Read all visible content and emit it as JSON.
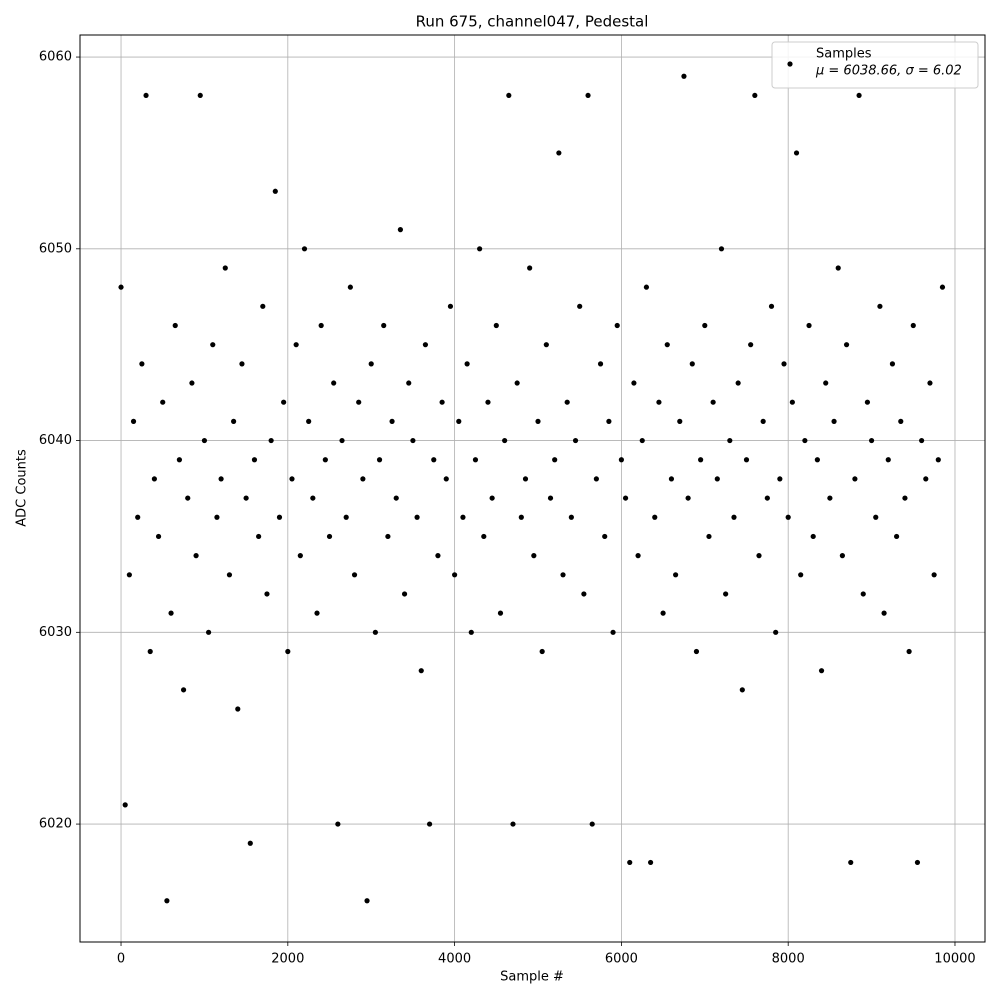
{
  "chart_data": {
    "type": "scatter",
    "title": "Run 675, channel047, Pedestal",
    "x_label": "Sample #",
    "y_label": "ADC Counts",
    "xlim": [
      -492,
      10360
    ],
    "ylim": [
      6013.85,
      6061.15
    ],
    "xticks": [
      0,
      2000,
      4000,
      6000,
      8000,
      10000
    ],
    "yticks": [
      6020,
      6030,
      6040,
      6050,
      6060
    ],
    "grid": true,
    "legend_position": "upper right",
    "legend_note": "μ = 6038.66, σ = 6.02",
    "series": [
      {
        "name": "Samples",
        "color": "#000000",
        "x": [
          0,
          50,
          100,
          150,
          200,
          250,
          300,
          350,
          400,
          450,
          500,
          550,
          600,
          650,
          700,
          750,
          800,
          850,
          900,
          950,
          1000,
          1050,
          1100,
          1150,
          1200,
          1250,
          1300,
          1350,
          1400,
          1450,
          1500,
          1550,
          1600,
          1650,
          1700,
          1750,
          1800,
          1850,
          1900,
          1950,
          2000,
          2050,
          2100,
          2150,
          2200,
          2250,
          2300,
          2350,
          2400,
          2450,
          2500,
          2550,
          2600,
          2650,
          2700,
          2750,
          2800,
          2850,
          2900,
          2950,
          3000,
          3050,
          3100,
          3150,
          3200,
          3250,
          3300,
          3350,
          3400,
          3450,
          3500,
          3550,
          3600,
          3650,
          3700,
          3750,
          3800,
          3850,
          3900,
          3950,
          4000,
          4050,
          4100,
          4150,
          4200,
          4250,
          4300,
          4350,
          4400,
          4450,
          4500,
          4550,
          4600,
          4650,
          4700,
          4750,
          4800,
          4850,
          4900,
          4950,
          5000,
          5050,
          5100,
          5150,
          5200,
          5250,
          5300,
          5350,
          5400,
          5450,
          5500,
          5550,
          5600,
          5650,
          5700,
          5750,
          5800,
          5850,
          5900,
          5950,
          6000,
          6050,
          6100,
          6150,
          6200,
          6250,
          6300,
          6350,
          6400,
          6450,
          6500,
          6550,
          6600,
          6650,
          6700,
          6750,
          6800,
          6850,
          6900,
          6950,
          7000,
          7050,
          7100,
          7150,
          7200,
          7250,
          7300,
          7350,
          7400,
          7450,
          7500,
          7550,
          7600,
          7650,
          7700,
          7750,
          7800,
          7850,
          7900,
          7950,
          8000,
          8050,
          8100,
          8150,
          8200,
          8250,
          8300,
          8350,
          8400,
          8450,
          8500,
          8550,
          8600,
          8650,
          8700,
          8750,
          8800,
          8850,
          8900,
          8950,
          9000,
          9050,
          9100,
          9150,
          9200,
          9250,
          9300,
          9350,
          9400,
          9450,
          9500,
          9550,
          9600,
          9650,
          9700,
          9750,
          9800,
          9850
        ],
        "values": [
          6048,
          6021,
          6033,
          6041,
          6036,
          6044,
          6058,
          6029,
          6038,
          6035,
          6042,
          6016,
          6031,
          6046,
          6039,
          6027,
          6037,
          6043,
          6034,
          6058,
          6040,
          6030,
          6045,
          6036,
          6038,
          6049,
          6033,
          6041,
          6026,
          6044,
          6037,
          6019,
          6039,
          6035,
          6047,
          6032,
          6040,
          6053,
          6036,
          6042,
          6029,
          6038,
          6045,
          6034,
          6050,
          6041,
          6037,
          6031,
          6046,
          6039,
          6035,
          6043,
          6020,
          6040,
          6036,
          6048,
          6033,
          6042,
          6038,
          6016,
          6044,
          6030,
          6039,
          6046,
          6035,
          6041,
          6037,
          6051,
          6032,
          6043,
          6040,
          6036,
          6028,
          6045,
          6020,
          6039,
          6034,
          6042,
          6038,
          6047,
          6033,
          6041,
          6036,
          6044,
          6030,
          6039,
          6050,
          6035,
          6042,
          6037,
          6046,
          6031,
          6040,
          6058,
          6020,
          6043,
          6036,
          6038,
          6049,
          6034,
          6041,
          6029,
          6045,
          6037,
          6039,
          6055,
          6033,
          6042,
          6036,
          6040,
          6047,
          6032,
          6058,
          6020,
          6038,
          6044,
          6035,
          6041,
          6030,
          6046,
          6039,
          6037,
          6018,
          6043,
          6034,
          6040,
          6048,
          6018,
          6036,
          6042,
          6031,
          6045,
          6038,
          6033,
          6041,
          6059,
          6037,
          6044,
          6029,
          6039,
          6046,
          6035,
          6042,
          6038,
          6050,
          6032,
          6040,
          6036,
          6043,
          6027,
          6039,
          6045,
          6058,
          6034,
          6041,
          6037,
          6047,
          6030,
          6038,
          6044,
          6036,
          6042,
          6055,
          6033,
          6040,
          6046,
          6035,
          6039,
          6028,
          6043,
          6037,
          6041,
          6049,
          6034,
          6045,
          6018,
          6038,
          6058,
          6032,
          6042,
          6040,
          6036,
          6047,
          6031,
          6039,
          6044,
          6035,
          6041,
          6037,
          6029,
          6046,
          6018,
          6040,
          6038,
          6043,
          6033,
          6039,
          6048
        ]
      }
    ]
  }
}
